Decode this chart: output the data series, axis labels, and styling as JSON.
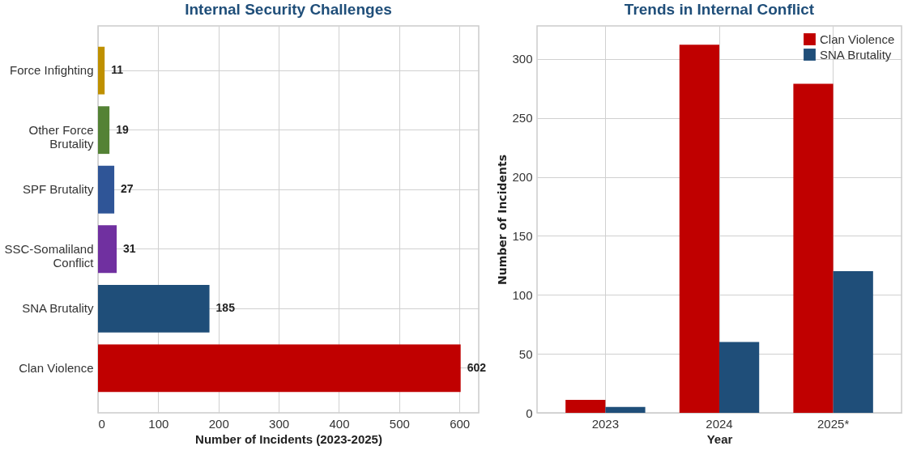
{
  "chart_data": [
    {
      "type": "bar",
      "orientation": "horizontal",
      "title": "Internal Security Challenges",
      "xlabel": "Number of Incidents (2023-2025)",
      "categories": [
        "Force Infighting",
        "Other Force Brutality",
        "SPF Brutality",
        "SSC-Somaliland Conflict",
        "SNA Brutality",
        "Clan Violence"
      ],
      "values": [
        11,
        19,
        27,
        31,
        185,
        602
      ],
      "colors": [
        "#bf9000",
        "#548235",
        "#2f5597",
        "#7030a0",
        "#1f4e79",
        "#c00000"
      ],
      "xlim": [
        0,
        632
      ],
      "xticks": [
        0,
        100,
        200,
        300,
        400,
        500,
        600
      ],
      "data_labels": true,
      "grid": true
    },
    {
      "type": "bar",
      "title": "Trends in Internal Conflict",
      "xlabel": "Year",
      "ylabel": "Number of Incidents",
      "categories": [
        "2023",
        "2024",
        "2025*"
      ],
      "series": [
        {
          "name": "Clan Violence",
          "color": "#c00000",
          "values": [
            11,
            312,
            279
          ]
        },
        {
          "name": "SNA Brutality",
          "color": "#1f4e79",
          "values": [
            5,
            60,
            120
          ]
        }
      ],
      "ylim": [
        0,
        328
      ],
      "yticks": [
        0,
        50,
        100,
        150,
        200,
        250,
        300
      ],
      "legend": "top right",
      "grid": true
    }
  ]
}
